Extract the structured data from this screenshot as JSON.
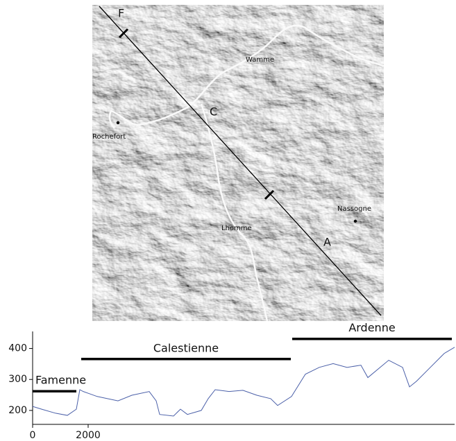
{
  "map": {
    "labels": [
      "F",
      "C",
      "A",
      "Wamme",
      "Rochefort",
      "Lhomme",
      "Nassogne"
    ]
  },
  "chart_data": {
    "type": "line",
    "x": [
      0,
      325,
      825,
      1250,
      1575,
      1700,
      1825,
      2325,
      3075,
      3575,
      4200,
      4450,
      4575,
      5075,
      5325,
      5575,
      6075,
      6325,
      6575,
      7075,
      7575,
      8075,
      8575,
      8825,
      9325,
      9825,
      10325,
      10825,
      11325,
      11825,
      12075,
      12825,
      13325,
      13575,
      13825,
      14325,
      14825,
      15200
    ],
    "series": [
      {
        "color": "#4a5fa8",
        "values": [
          213,
          204,
          191,
          184,
          204,
          267,
          261,
          245,
          231,
          249,
          261,
          231,
          187,
          182,
          204,
          187,
          200,
          238,
          267,
          261,
          265,
          249,
          238,
          216,
          245,
          317,
          339,
          351,
          339,
          346,
          306,
          362,
          339,
          276,
          294,
          339,
          384,
          404
        ]
      }
    ],
    "xlim": [
      0,
      15200
    ],
    "xticks": [
      0,
      2000
    ],
    "ylim": [
      155,
      455
    ],
    "yticks": [
      200,
      300,
      400
    ],
    "annotations": [
      {
        "label": "Famenne",
        "x": [
          0,
          1575
        ],
        "y": 262
      },
      {
        "label": "Calestienne",
        "x": [
          1750,
          9300
        ],
        "y": 366
      },
      {
        "label": "Ardenne",
        "x": [
          9350,
          15100
        ],
        "y": 431
      }
    ]
  }
}
